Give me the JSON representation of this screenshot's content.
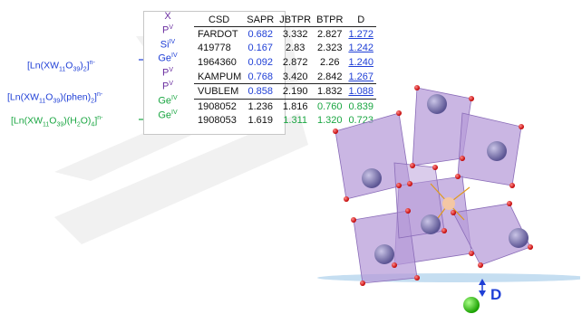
{
  "formulas": {
    "f1": {
      "pre": "[Ln(XW",
      "s1": "11",
      "mid": "O",
      "s2": "39",
      "post": ")",
      "s3": "2",
      "end": "]",
      "charge": "n-"
    },
    "f2": {
      "pre": "[Ln(XW",
      "s1": "11",
      "mid": "O",
      "s2": "39",
      "post": ")(phen)",
      "s3": "2",
      "end": "]",
      "charge": "n-"
    },
    "f3": {
      "pre": "[Ln(XW",
      "s1": "11",
      "mid": "O",
      "s2": "39",
      "post": ")(H",
      "s3": "2",
      "end": "O)",
      "s4": "4",
      "end2": "]",
      "charge": "n-"
    }
  },
  "table": {
    "headers": [
      "X",
      "CSD",
      "SAPR",
      "JBTPR",
      "BTPR",
      "D"
    ],
    "rows": [
      {
        "x": "P",
        "xsup": "V",
        "csd": "FARDOT",
        "sapr": "0.682",
        "jbtpr": "3.332",
        "btpr": "2.827",
        "d": "1.272"
      },
      {
        "x": "Si",
        "xsup": "IV",
        "csd": "419778",
        "sapr": "0.167",
        "jbtpr": "2.83",
        "btpr": "2.323",
        "d": "1.242"
      },
      {
        "x": "Ge",
        "xsup": "IV",
        "csd": "1964360",
        "sapr": "0.092",
        "jbtpr": "2.872",
        "btpr": "2.26",
        "d": "1.240"
      },
      {
        "x": "P",
        "xsup": "V",
        "csd": "KAMPUM",
        "sapr": "0.768",
        "jbtpr": "3.420",
        "btpr": "2.842",
        "d": "1.267"
      },
      {
        "x": "P",
        "xsup": "V",
        "csd": "VUBLEM",
        "sapr": "0.858",
        "jbtpr": "2.190",
        "btpr": "1.832",
        "d": "1.088"
      },
      {
        "x": "Ge",
        "xsup": "IV",
        "csd": "1908052",
        "sapr": "1.236",
        "jbtpr": "1.816",
        "btpr": "0.760",
        "d": "0.839"
      },
      {
        "x": "Ge",
        "xsup": "IV",
        "csd": "1908053",
        "sapr": "1.619",
        "jbtpr": "1.311",
        "btpr": "1.320",
        "d": "0.723"
      }
    ]
  },
  "figure": {
    "d_label": "D"
  },
  "colors": {
    "blue": "#1f3fd6",
    "green": "#1aa642",
    "purple": "#6b2fa0",
    "polyhedra": "#b59ad8"
  }
}
